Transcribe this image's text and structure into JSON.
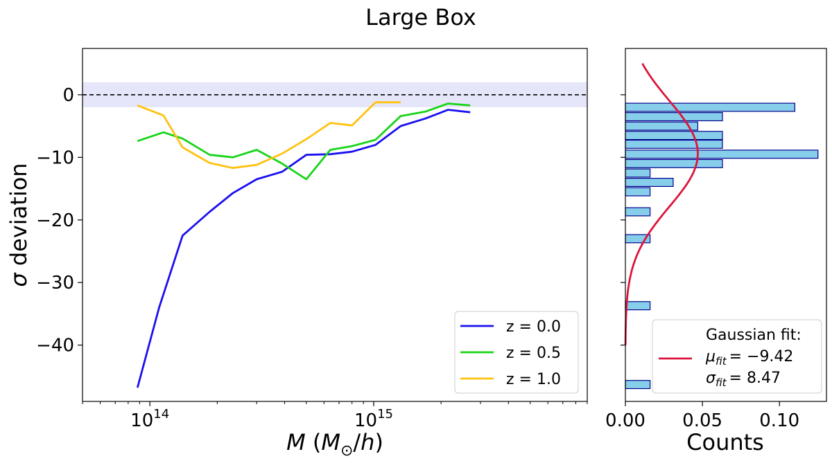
{
  "figure_title": "Large Box",
  "chart_data": [
    {
      "type": "line",
      "xscale": "log",
      "xlim": [
        50000000000000.0,
        9000000000000000.0
      ],
      "ylim": [
        -49,
        7.4
      ],
      "xlabel": "M (M⊙/h)",
      "ylabel": "σ deviation",
      "xticks": [
        {
          "value": 100000000000000.0,
          "base": "10",
          "exp": "14"
        },
        {
          "value": 1000000000000000.0,
          "base": "10",
          "exp": "15"
        }
      ],
      "yticks": [
        {
          "value": 0,
          "label": "0"
        },
        {
          "value": -10,
          "label": "−10"
        },
        {
          "value": -20,
          "label": "−20"
        },
        {
          "value": -30,
          "label": "−30"
        },
        {
          "value": -40,
          "label": "−40"
        }
      ],
      "reference_line": 0,
      "reference_band": [
        -2,
        2
      ],
      "legend_position": "lower-right",
      "series": [
        {
          "name": "z = 0.0",
          "color": "#1a0ff0",
          "x": [
            88000000000000.0,
            110000000000000.0,
            140000000000000.0,
            185000000000000.0,
            235000000000000.0,
            300000000000000.0,
            390000000000000.0,
            500000000000000.0,
            640000000000000.0,
            800000000000000.0,
            1020000000000000.0,
            1320000000000000.0,
            1700000000000000.0,
            2150000000000000.0,
            2700000000000000.0
          ],
          "y": [
            -46.8,
            -34.0,
            -22.5,
            -18.7,
            -15.7,
            -13.5,
            -12.3,
            -9.6,
            -9.5,
            -9.1,
            -8.0,
            -5.0,
            -3.8,
            -2.4,
            -2.8
          ]
        },
        {
          "name": "z = 0.5",
          "color": "#18d418",
          "x": [
            88000000000000.0,
            115000000000000.0,
            140000000000000.0,
            185000000000000.0,
            235000000000000.0,
            300000000000000.0,
            390000000000000.0,
            500000000000000.0,
            640000000000000.0,
            800000000000000.0,
            1020000000000000.0,
            1320000000000000.0,
            1700000000000000.0,
            2150000000000000.0,
            2700000000000000.0
          ],
          "y": [
            -7.4,
            -6.0,
            -7.0,
            -9.6,
            -10.0,
            -8.8,
            -11.0,
            -13.5,
            -8.8,
            -8.2,
            -7.2,
            -3.4,
            -2.7,
            -1.4,
            -1.7
          ]
        },
        {
          "name": "z = 1.0",
          "color": "#ffc20f",
          "x": [
            88000000000000.0,
            115000000000000.0,
            140000000000000.0,
            185000000000000.0,
            235000000000000.0,
            300000000000000.0,
            390000000000000.0,
            500000000000000.0,
            640000000000000.0,
            800000000000000.0,
            1020000000000000.0,
            1320000000000000.0
          ],
          "y": [
            -1.7,
            -3.3,
            -8.4,
            -10.9,
            -11.7,
            -11.2,
            -9.4,
            -7.1,
            -4.5,
            -4.9,
            -1.2,
            -1.2
          ]
        }
      ]
    },
    {
      "type": "bar",
      "orientation": "horizontal",
      "xlim": [
        0,
        0.1305
      ],
      "ylim": [
        -49,
        7.4
      ],
      "xlabel": "Counts",
      "xticks": [
        {
          "value": 0.0,
          "label": "0.00"
        },
        {
          "value": 0.05,
          "label": "0.05"
        },
        {
          "value": 0.1,
          "label": "0.10"
        }
      ],
      "bin_width": 1.3,
      "color": "#87ceeb",
      "edge_color": "#00008b",
      "bins": [
        {
          "center": -2.0,
          "value": 0.11
        },
        {
          "center": -3.5,
          "value": 0.063
        },
        {
          "center": -5.0,
          "value": 0.047
        },
        {
          "center": -6.5,
          "value": 0.063
        },
        {
          "center": -7.9,
          "value": 0.063
        },
        {
          "center": -9.5,
          "value": 0.125
        },
        {
          "center": -11.0,
          "value": 0.063
        },
        {
          "center": -12.5,
          "value": 0.016
        },
        {
          "center": -14.0,
          "value": 0.031
        },
        {
          "center": -15.5,
          "value": 0.016
        },
        {
          "center": -18.7,
          "value": 0.016
        },
        {
          "center": -23.0,
          "value": 0.016
        },
        {
          "center": -33.7,
          "value": 0.016
        },
        {
          "center": -46.3,
          "value": 0.016
        }
      ],
      "gaussian_fit": {
        "mu": -9.42,
        "sigma": 8.47,
        "color": "#dc143c",
        "legend_title": "Gaussian fit:",
        "mu_label": "μ",
        "mu_sub": "fit",
        "mu_text": "= −9.42",
        "sigma_label": "σ",
        "sigma_sub": "fit",
        "sigma_text": "= 8.47"
      }
    }
  ]
}
